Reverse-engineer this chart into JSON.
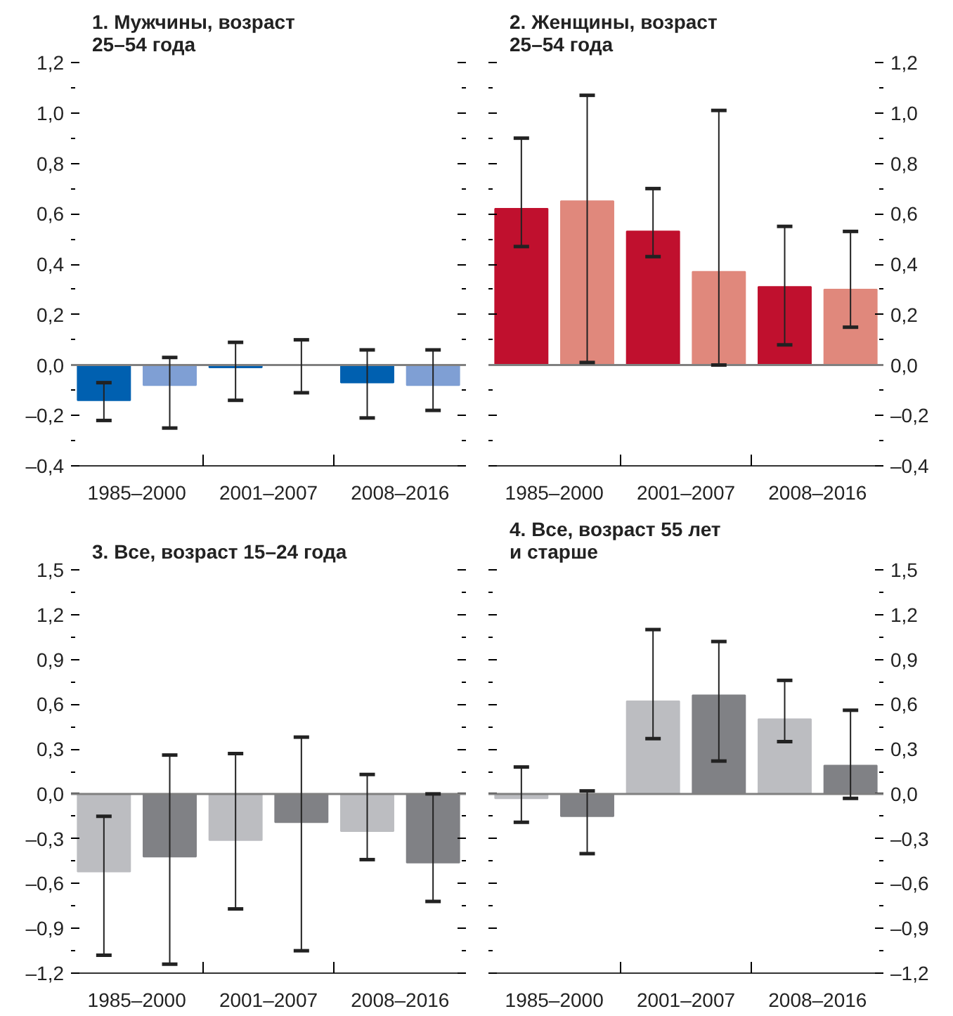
{
  "chart_data": [
    {
      "type": "bar",
      "title": "1. Мужчины, возраст\n25–54 года",
      "categories": [
        "1985–2000",
        "2001–2007",
        "2008–2016"
      ],
      "series": [
        {
          "color": "#0060b0",
          "values": [
            -0.14,
            -0.01,
            -0.07
          ],
          "errors": [
            [
              -0.22,
              -0.07
            ],
            [
              -0.14,
              0.09
            ],
            [
              -0.21,
              0.06
            ]
          ]
        },
        {
          "color": "#7f9fd4",
          "values": [
            -0.08,
            0.0,
            -0.08
          ],
          "errors": [
            [
              -0.25,
              0.03
            ],
            [
              -0.11,
              0.1
            ],
            [
              -0.18,
              0.06
            ]
          ]
        }
      ],
      "ylim": [
        -0.4,
        1.2
      ],
      "yticks": [
        {
          "value": -0.4,
          "label": "–0,4"
        },
        {
          "value": -0.2,
          "label": "–0,2"
        },
        {
          "value": 0,
          "label": "0,0"
        },
        {
          "value": 0.2,
          "label": "0,2"
        },
        {
          "value": 0.4,
          "label": "0,4"
        },
        {
          "value": 0.6,
          "label": "0,6"
        },
        {
          "value": 0.8,
          "label": "0,8"
        },
        {
          "value": 1.0,
          "label": "1,0"
        },
        {
          "value": 1.2,
          "label": "1,2"
        }
      ],
      "ref_lines": [
        {
          "axis": "y",
          "value": 0,
          "color": "#808080"
        }
      ],
      "grid": false
    },
    {
      "type": "bar",
      "title": "2. Женщины, возраст\n25–54 года",
      "categories": [
        "1985–2000",
        "2001–2007",
        "2008–2016"
      ],
      "series": [
        {
          "color": "#c0102e",
          "axis": "y2",
          "values": [
            0.62,
            0.53,
            0.31
          ],
          "errors": [
            [
              0.47,
              0.9
            ],
            [
              0.43,
              0.7
            ],
            [
              0.08,
              0.55
            ]
          ]
        },
        {
          "color": "#e0887c",
          "axis": "y2",
          "values": [
            0.65,
            0.37,
            0.3
          ],
          "errors": [
            [
              0.01,
              1.07
            ],
            [
              0.0,
              1.01
            ],
            [
              0.15,
              0.53
            ]
          ]
        }
      ],
      "y2lim": [
        -0.4,
        1.2
      ],
      "y2ticks": [
        {
          "value": -0.4,
          "label": "–0,4"
        },
        {
          "value": -0.2,
          "label": "–0,2"
        },
        {
          "value": 0,
          "label": "0,0"
        },
        {
          "value": 0.2,
          "label": "0,2"
        },
        {
          "value": 0.4,
          "label": "0,4"
        },
        {
          "value": 0.6,
          "label": "0,6"
        },
        {
          "value": 0.8,
          "label": "0,8"
        },
        {
          "value": 1.0,
          "label": "1,0"
        },
        {
          "value": 1.2,
          "label": "1,2"
        }
      ],
      "ref_lines": [
        {
          "axis": "y2",
          "value": 0,
          "color": "#808080"
        }
      ],
      "grid": false
    },
    {
      "type": "bar",
      "title": "3. Все, возраст 15–24 года",
      "categories": [
        "1985–2000",
        "2001–2007",
        "2008–2016"
      ],
      "series": [
        {
          "color": "#bcbdc1",
          "values": [
            -0.52,
            -0.31,
            -0.25
          ],
          "errors": [
            [
              -1.08,
              -0.15
            ],
            [
              -0.77,
              0.27
            ],
            [
              -0.44,
              0.13
            ]
          ]
        },
        {
          "color": "#808185",
          "values": [
            -0.42,
            -0.19,
            -0.46
          ],
          "errors": [
            [
              -1.14,
              0.26
            ],
            [
              -1.05,
              0.38
            ],
            [
              -0.72,
              0.0
            ]
          ]
        }
      ],
      "ylim": [
        -1.2,
        1.5
      ],
      "yticks": [
        {
          "value": -1.2,
          "label": "–1,2"
        },
        {
          "value": -0.9,
          "label": "–0,9"
        },
        {
          "value": -0.6,
          "label": "–0,6"
        },
        {
          "value": -0.3,
          "label": "–0,3"
        },
        {
          "value": 0,
          "label": "0,0"
        },
        {
          "value": 0.3,
          "label": "0,3"
        },
        {
          "value": 0.6,
          "label": "0,6"
        },
        {
          "value": 0.9,
          "label": "0,9"
        },
        {
          "value": 1.2,
          "label": "1,2"
        },
        {
          "value": 1.5,
          "label": "1,5"
        }
      ],
      "ref_lines": [
        {
          "axis": "y",
          "value": 0,
          "color": "#808080"
        }
      ],
      "grid": false
    },
    {
      "type": "bar",
      "title": "4. Все, возраст 55 лет\nи старше",
      "categories": [
        "1985–2000",
        "2001–2007",
        "2008–2016"
      ],
      "series": [
        {
          "color": "#bcbdc1",
          "axis": "y2",
          "values": [
            -0.03,
            0.62,
            0.5
          ],
          "errors": [
            [
              -0.19,
              0.18
            ],
            [
              0.37,
              1.1
            ],
            [
              0.35,
              0.76
            ]
          ]
        },
        {
          "color": "#808185",
          "axis": "y2",
          "values": [
            -0.15,
            0.66,
            0.19
          ],
          "errors": [
            [
              -0.4,
              0.02
            ],
            [
              0.22,
              1.02
            ],
            [
              -0.03,
              0.56
            ]
          ]
        }
      ],
      "y2lim": [
        -1.2,
        1.5
      ],
      "y2ticks": [
        {
          "value": -1.2,
          "label": "–1,2"
        },
        {
          "value": -0.9,
          "label": "–0,9"
        },
        {
          "value": -0.6,
          "label": "–0,6"
        },
        {
          "value": -0.3,
          "label": "–0,3"
        },
        {
          "value": 0,
          "label": "0,0"
        },
        {
          "value": 0.3,
          "label": "0,3"
        },
        {
          "value": 0.6,
          "label": "0,6"
        },
        {
          "value": 0.9,
          "label": "0,9"
        },
        {
          "value": 1.2,
          "label": "1,2"
        },
        {
          "value": 1.5,
          "label": "1,5"
        }
      ],
      "ref_lines": [
        {
          "axis": "y2",
          "value": 0,
          "color": "#808080"
        }
      ],
      "grid": false
    }
  ]
}
